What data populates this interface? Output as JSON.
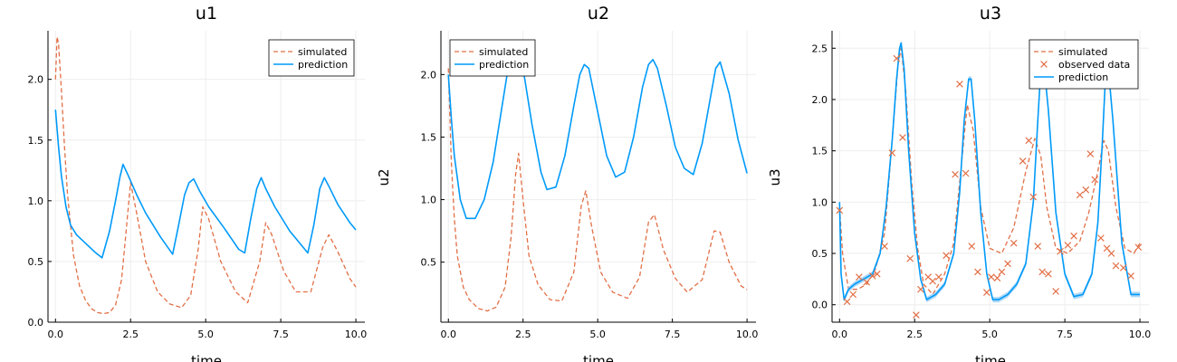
{
  "colors": {
    "simulated": "#e26f46",
    "prediction": "#009af9",
    "band": "#8cc8f2",
    "grid": "#eeeeee",
    "axis": "#000000"
  },
  "chart_data": [
    {
      "type": "line",
      "title": "u1",
      "xlabel": "time",
      "ylabel": "",
      "xlim": [
        -0.25,
        10.3
      ],
      "ylim": [
        0.0,
        2.4
      ],
      "xticks": [
        0.0,
        2.5,
        5.0,
        7.5,
        10.0
      ],
      "xtick_labels": [
        "0.0",
        "2.5",
        "5.0",
        "7.5",
        "10.0"
      ],
      "yticks": [
        0.0,
        0.5,
        1.0,
        1.5,
        2.0
      ],
      "ytick_labels": [
        "0.0",
        "0.5",
        "1.0",
        "1.5",
        "2.0"
      ],
      "grid": true,
      "legend_position": "top-right",
      "series": [
        {
          "name": "simulated",
          "style": "dashed",
          "x": [
            0.0,
            0.05,
            0.1,
            0.2,
            0.3,
            0.4,
            0.6,
            0.8,
            1.0,
            1.2,
            1.4,
            1.6,
            1.8,
            2.0,
            2.2,
            2.35,
            2.5,
            2.7,
            3.0,
            3.4,
            3.8,
            4.2,
            4.5,
            4.75,
            4.9,
            5.1,
            5.5,
            6.0,
            6.4,
            6.8,
            7.0,
            7.2,
            7.6,
            8.0,
            8.5,
            8.9,
            9.1,
            9.4,
            9.8,
            10.0
          ],
          "y": [
            2.0,
            2.35,
            2.3,
            1.9,
            1.45,
            1.05,
            0.55,
            0.3,
            0.18,
            0.11,
            0.08,
            0.07,
            0.08,
            0.14,
            0.35,
            0.75,
            1.15,
            0.9,
            0.5,
            0.25,
            0.15,
            0.12,
            0.22,
            0.6,
            0.95,
            0.85,
            0.5,
            0.25,
            0.16,
            0.5,
            0.82,
            0.72,
            0.42,
            0.25,
            0.25,
            0.62,
            0.72,
            0.58,
            0.36,
            0.29
          ]
        },
        {
          "name": "prediction",
          "style": "solid",
          "x": [
            0.0,
            0.1,
            0.2,
            0.35,
            0.5,
            0.7,
            1.0,
            1.3,
            1.55,
            1.8,
            2.0,
            2.15,
            2.25,
            2.4,
            2.7,
            3.0,
            3.5,
            3.9,
            4.1,
            4.3,
            4.45,
            4.6,
            4.8,
            5.1,
            5.6,
            6.1,
            6.3,
            6.5,
            6.7,
            6.85,
            7.0,
            7.3,
            7.8,
            8.4,
            8.6,
            8.8,
            8.95,
            9.1,
            9.4,
            9.8,
            10.0
          ],
          "y": [
            1.75,
            1.45,
            1.2,
            0.95,
            0.8,
            0.72,
            0.65,
            0.58,
            0.53,
            0.75,
            1.0,
            1.2,
            1.3,
            1.22,
            1.05,
            0.9,
            0.7,
            0.56,
            0.8,
            1.05,
            1.15,
            1.18,
            1.08,
            0.95,
            0.78,
            0.6,
            0.57,
            0.85,
            1.1,
            1.19,
            1.1,
            0.95,
            0.75,
            0.57,
            0.8,
            1.1,
            1.19,
            1.12,
            0.97,
            0.82,
            0.76
          ]
        }
      ]
    },
    {
      "type": "line",
      "title": "u2",
      "xlabel": "time",
      "ylabel": "u2",
      "xlim": [
        -0.25,
        10.3
      ],
      "ylim": [
        0.02,
        2.35
      ],
      "xticks": [
        0.0,
        2.5,
        5.0,
        7.5,
        10.0
      ],
      "xtick_labels": [
        "0.0",
        "2.5",
        "5.0",
        "7.5",
        "10.0"
      ],
      "yticks": [
        0.5,
        1.0,
        1.5,
        2.0
      ],
      "ytick_labels": [
        "0.5",
        "1.0",
        "1.5",
        "2.0"
      ],
      "grid": true,
      "legend_position": "top-left",
      "series": [
        {
          "name": "simulated",
          "style": "dashed",
          "x": [
            0.0,
            0.1,
            0.2,
            0.3,
            0.5,
            0.7,
            1.0,
            1.3,
            1.6,
            1.9,
            2.1,
            2.25,
            2.35,
            2.5,
            2.7,
            3.0,
            3.4,
            3.8,
            4.2,
            4.45,
            4.6,
            4.8,
            5.1,
            5.5,
            6.0,
            6.4,
            6.7,
            6.9,
            7.2,
            7.6,
            8.0,
            8.5,
            8.9,
            9.1,
            9.4,
            9.8,
            10.0
          ],
          "y": [
            2.05,
            1.3,
            0.85,
            0.55,
            0.3,
            0.2,
            0.13,
            0.11,
            0.14,
            0.3,
            0.7,
            1.2,
            1.37,
            1.0,
            0.55,
            0.32,
            0.2,
            0.19,
            0.42,
            0.95,
            1.07,
            0.78,
            0.42,
            0.26,
            0.21,
            0.38,
            0.82,
            0.88,
            0.6,
            0.37,
            0.26,
            0.36,
            0.75,
            0.74,
            0.5,
            0.31,
            0.28
          ]
        },
        {
          "name": "prediction",
          "style": "solid",
          "x": [
            0.0,
            0.1,
            0.2,
            0.4,
            0.6,
            0.9,
            1.2,
            1.5,
            1.8,
            2.0,
            2.15,
            2.3,
            2.5,
            2.8,
            3.1,
            3.3,
            3.6,
            3.9,
            4.2,
            4.4,
            4.55,
            4.7,
            5.0,
            5.3,
            5.6,
            5.9,
            6.2,
            6.5,
            6.7,
            6.85,
            7.0,
            7.3,
            7.6,
            7.9,
            8.2,
            8.5,
            8.8,
            8.95,
            9.1,
            9.4,
            9.7,
            10.0
          ],
          "y": [
            2.0,
            1.65,
            1.35,
            1.0,
            0.85,
            0.85,
            1.0,
            1.3,
            1.75,
            2.05,
            2.2,
            2.25,
            2.05,
            1.6,
            1.22,
            1.08,
            1.1,
            1.35,
            1.75,
            2.0,
            2.08,
            2.05,
            1.7,
            1.35,
            1.18,
            1.22,
            1.5,
            1.9,
            2.08,
            2.12,
            2.05,
            1.75,
            1.42,
            1.25,
            1.2,
            1.45,
            1.85,
            2.05,
            2.1,
            1.85,
            1.48,
            1.21
          ]
        }
      ]
    },
    {
      "type": "line",
      "title": "u3",
      "xlabel": "time",
      "ylabel": "u3",
      "xlim": [
        -0.25,
        10.3
      ],
      "ylim": [
        -0.17,
        2.67
      ],
      "xticks": [
        0.0,
        2.5,
        5.0,
        7.5,
        10.0
      ],
      "xtick_labels": [
        "0.0",
        "2.5",
        "5.0",
        "7.5",
        "10.0"
      ],
      "yticks": [
        0.0,
        0.5,
        1.0,
        1.5,
        2.0,
        2.5
      ],
      "ytick_labels": [
        "0.0",
        "0.5",
        "1.0",
        "1.5",
        "2.0",
        "2.5"
      ],
      "grid": true,
      "legend_position": "top-right",
      "series": [
        {
          "name": "simulated",
          "style": "dashed",
          "x": [
            0.0,
            0.1,
            0.3,
            0.6,
            0.9,
            1.2,
            1.5,
            1.75,
            1.95,
            2.05,
            2.2,
            2.4,
            2.6,
            2.8,
            3.1,
            3.5,
            3.8,
            4.05,
            4.25,
            4.45,
            4.7,
            5.0,
            5.4,
            5.8,
            6.2,
            6.5,
            6.7,
            6.9,
            7.2,
            7.6,
            8.0,
            8.3,
            8.6,
            8.8,
            8.95,
            9.2,
            9.5,
            9.8,
            10.0
          ],
          "y": [
            0.95,
            0.5,
            0.15,
            0.15,
            0.2,
            0.35,
            0.7,
            1.6,
            2.35,
            2.5,
            2.1,
            1.2,
            0.55,
            0.2,
            0.1,
            0.3,
            0.6,
            1.35,
            1.95,
            1.7,
            0.95,
            0.55,
            0.5,
            0.75,
            1.3,
            1.62,
            1.45,
            0.95,
            0.55,
            0.5,
            0.62,
            0.9,
            1.3,
            1.6,
            1.5,
            0.95,
            0.55,
            0.5,
            0.6
          ]
        },
        {
          "name": "prediction",
          "style": "solid",
          "band": true,
          "x": [
            0.0,
            0.05,
            0.15,
            0.3,
            0.5,
            0.8,
            1.1,
            1.35,
            1.55,
            1.75,
            1.9,
            2.0,
            2.05,
            2.15,
            2.3,
            2.5,
            2.7,
            2.9,
            3.2,
            3.5,
            3.8,
            4.0,
            4.15,
            4.3,
            4.38,
            4.5,
            4.7,
            4.9,
            5.1,
            5.3,
            5.6,
            5.9,
            6.2,
            6.45,
            6.6,
            6.7,
            6.8,
            6.95,
            7.2,
            7.5,
            7.8,
            8.1,
            8.4,
            8.6,
            8.75,
            8.85,
            8.95,
            9.1,
            9.4,
            9.7,
            10.0
          ],
          "y": [
            1.0,
            0.3,
            0.05,
            0.15,
            0.2,
            0.25,
            0.3,
            0.5,
            0.95,
            1.6,
            2.2,
            2.5,
            2.55,
            2.3,
            1.5,
            0.7,
            0.25,
            0.05,
            0.1,
            0.2,
            0.5,
            1.1,
            1.8,
            2.2,
            2.2,
            1.8,
            0.9,
            0.3,
            0.05,
            0.05,
            0.1,
            0.2,
            0.4,
            1.0,
            1.8,
            2.3,
            2.35,
            1.9,
            0.9,
            0.3,
            0.08,
            0.1,
            0.3,
            0.8,
            1.6,
            2.2,
            2.3,
            1.8,
            0.6,
            0.1,
            0.1
          ]
        },
        {
          "name": "observed data",
          "style": "scatter",
          "x": [
            0.0,
            0.25,
            0.45,
            0.65,
            0.9,
            1.1,
            1.25,
            1.5,
            1.75,
            1.9,
            2.1,
            2.35,
            2.55,
            2.7,
            2.95,
            3.1,
            3.3,
            3.55,
            3.85,
            4.0,
            4.2,
            4.4,
            4.6,
            4.9,
            5.05,
            5.25,
            5.4,
            5.6,
            5.8,
            6.1,
            6.3,
            6.45,
            6.6,
            6.75,
            6.95,
            7.2,
            7.35,
            7.6,
            7.8,
            8.0,
            8.2,
            8.35,
            8.5,
            8.7,
            8.9,
            9.05,
            9.2,
            9.45,
            9.7,
            9.95
          ],
          "y": [
            0.92,
            0.03,
            0.1,
            0.27,
            0.22,
            0.28,
            0.3,
            0.57,
            1.48,
            2.4,
            1.63,
            0.45,
            -0.1,
            0.15,
            0.27,
            0.23,
            0.27,
            0.48,
            1.27,
            2.15,
            1.28,
            0.57,
            0.32,
            0.12,
            0.27,
            0.26,
            0.32,
            0.4,
            0.6,
            1.4,
            1.6,
            1.05,
            0.57,
            0.32,
            0.3,
            0.13,
            0.52,
            0.58,
            0.67,
            1.07,
            1.12,
            1.47,
            1.22,
            0.65,
            0.55,
            0.5,
            0.38,
            0.36,
            0.28,
            0.56
          ]
        }
      ]
    }
  ]
}
